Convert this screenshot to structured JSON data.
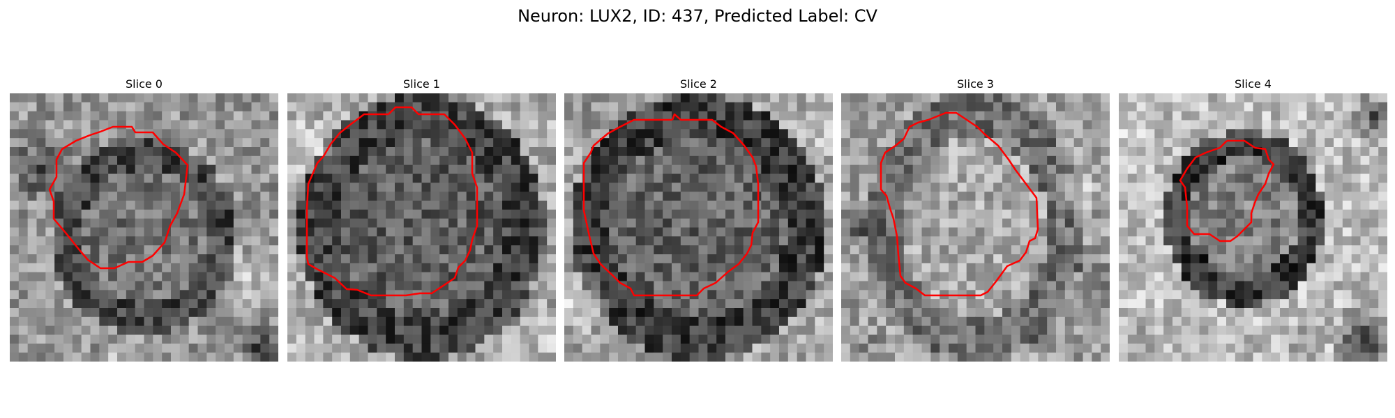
{
  "figure": {
    "title": "Neuron: LUX2, ID: 437, Predicted Label: CV",
    "panels": [
      {
        "title": "Slice 0",
        "image": "grayscale microscopy crop with red contour"
      },
      {
        "title": "Slice 1",
        "image": "grayscale microscopy crop with red contour"
      },
      {
        "title": "Slice 2",
        "image": "grayscale microscopy crop with red contour"
      },
      {
        "title": "Slice 3",
        "image": "grayscale microscopy crop with red contour"
      },
      {
        "title": "Slice 4",
        "image": "grayscale microscopy crop with red contour"
      }
    ]
  },
  "colors": {
    "contour": "#ff0000",
    "background": "#ffffff"
  }
}
